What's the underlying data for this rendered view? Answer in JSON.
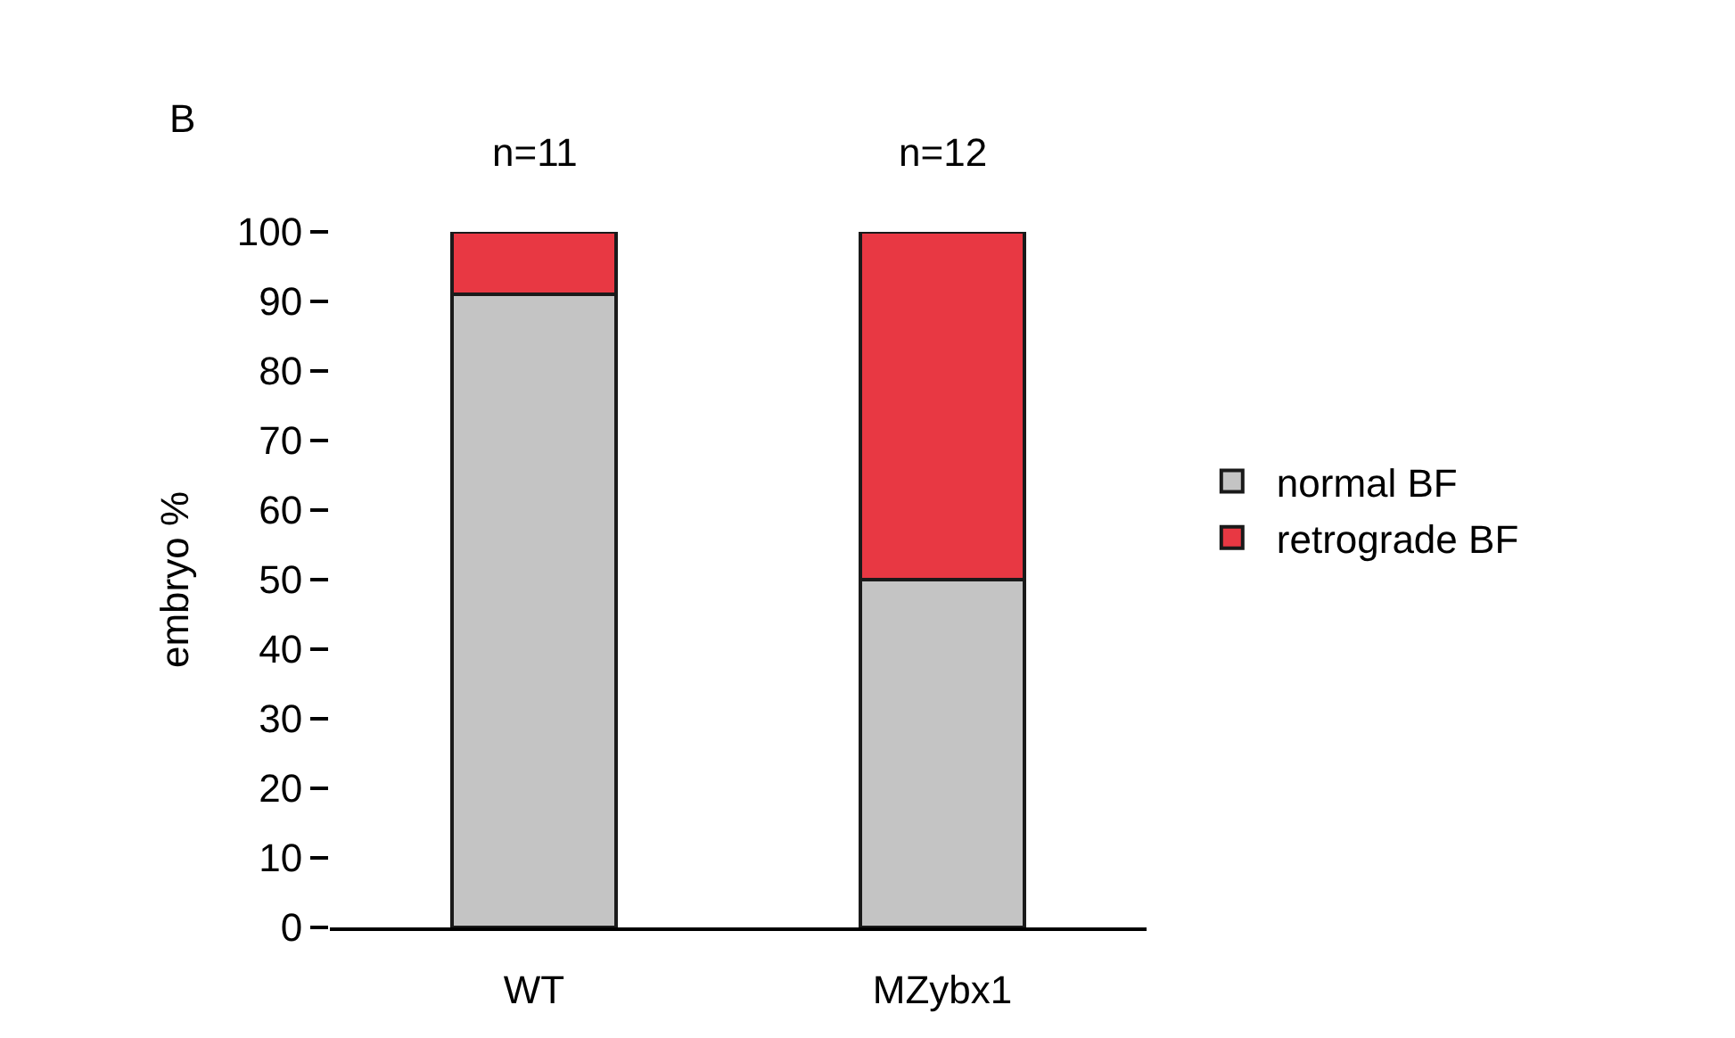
{
  "chart_data": {
    "type": "bar",
    "stacked": true,
    "ylabel": "embryo %",
    "categories": [
      "WT",
      "MZybx1"
    ],
    "series": [
      {
        "name": "normal BF",
        "color": "#c4c4c4",
        "values": [
          91,
          50
        ]
      },
      {
        "name": "retrograde BF",
        "color": "#e83843",
        "values": [
          9,
          50
        ]
      }
    ],
    "ylim": [
      0,
      100
    ],
    "yticks": [
      0,
      10,
      20,
      30,
      40,
      50,
      60,
      70,
      80,
      90,
      100
    ],
    "grid": false,
    "legend": "right",
    "annotations": [
      "B",
      {
        "text": "n=11",
        "x": "WT",
        "y": 100
      },
      {
        "text": "n=12",
        "x": "MZybx1",
        "y": 100
      }
    ]
  }
}
